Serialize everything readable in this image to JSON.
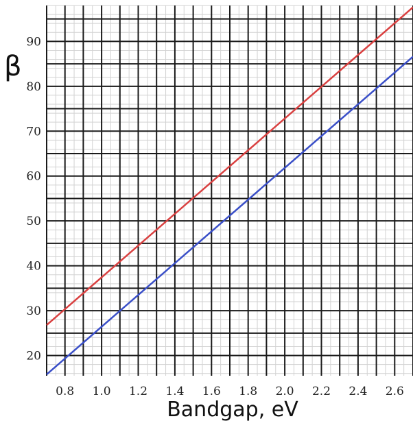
{
  "chart_data": {
    "type": "line",
    "xlabel": "Bandgap, eV",
    "ylabel": "β",
    "xlim": [
      0.7,
      2.7
    ],
    "ylim": [
      15.5,
      98
    ],
    "x_ticks": [
      "0.8",
      "1.0",
      "1.2",
      "1.4",
      "1.6",
      "1.8",
      "2.0",
      "2.2",
      "2.4",
      "2.6"
    ],
    "y_ticks": [
      "20",
      "30",
      "40",
      "50",
      "60",
      "70",
      "80",
      "90"
    ],
    "major_grid": true,
    "minor_grid": true,
    "series": [
      {
        "color": "#d94040",
        "x": [
          0.7,
          2.7
        ],
        "y": [
          26.8,
          97.6
        ]
      },
      {
        "color": "#3a4fc8",
        "x": [
          0.7,
          2.7
        ],
        "y": [
          15.8,
          86.6
        ]
      }
    ]
  }
}
